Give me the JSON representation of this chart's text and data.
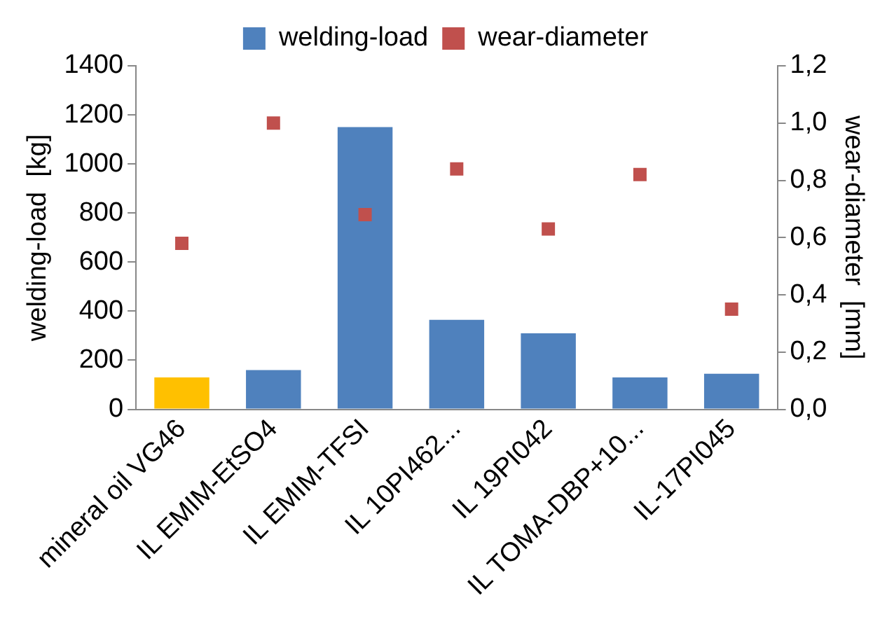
{
  "chart_data": {
    "type": "bar",
    "categories": [
      "mineral oil VG46",
      "IL EMIM-EtSO4",
      "IL EMIM-TFSI",
      "IL 10PI462...",
      "IL 19PI042",
      "IL TOMA-DBP+10...",
      "IL-17PI045"
    ],
    "ylabel": "welding-load  [kg]",
    "y2label": "wear-diameter  [mm]",
    "series": [
      {
        "name": "welding-load",
        "color": "#4f81bd",
        "colors": [
          "#ffc000",
          "#4f81bd",
          "#4f81bd",
          "#4f81bd",
          "#4f81bd",
          "#4f81bd",
          "#4f81bd"
        ],
        "values": [
          130,
          160,
          1150,
          365,
          310,
          130,
          145
        ]
      },
      {
        "name": "wear-diameter",
        "type": "scatter",
        "axis": "y2",
        "color": "#c0504d",
        "marker": "square",
        "values": [
          0.58,
          1.0,
          0.68,
          0.84,
          0.63,
          0.82,
          0.35
        ]
      }
    ],
    "ylim": [
      0,
      1400
    ],
    "yticks": [
      0,
      200,
      400,
      600,
      800,
      1000,
      1200,
      1400
    ],
    "y2lim": [
      0,
      1.2
    ],
    "y2ticks": [
      {
        "value": 0,
        "label": "0,0"
      },
      {
        "value": 0.2,
        "label": "0,2"
      },
      {
        "value": 0.4,
        "label": "0,4"
      },
      {
        "value": 0.6,
        "label": "0,6"
      },
      {
        "value": 0.8,
        "label": "0,8"
      },
      {
        "value": 1.0,
        "label": "1,0"
      },
      {
        "value": 1.2,
        "label": "1,2"
      }
    ],
    "grid": false,
    "legend": "top"
  }
}
